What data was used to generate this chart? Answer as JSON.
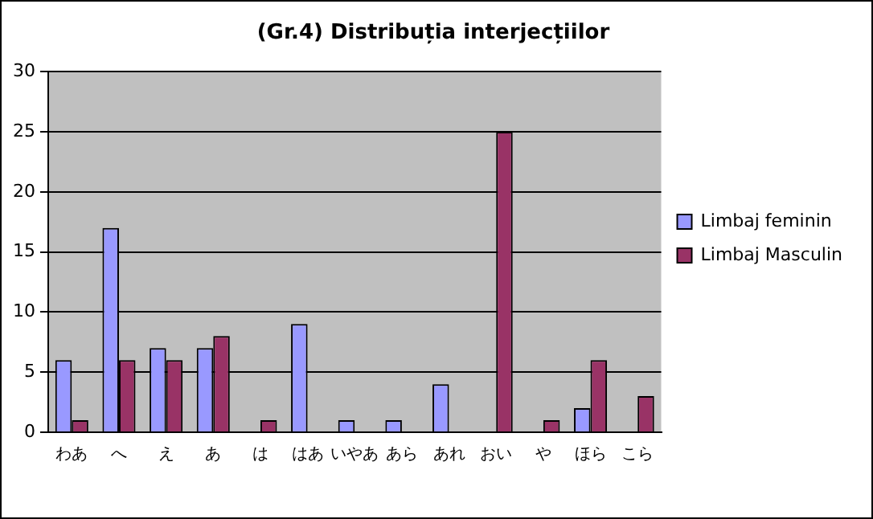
{
  "chart_data": {
    "type": "bar",
    "title": "(Gr.4) Distribuția interjecțiilor",
    "categories": [
      "わあ",
      "へ",
      "え",
      "あ",
      "は",
      "はあ",
      "いやあ",
      "あら",
      "あれ",
      "おい",
      "や",
      "ほら",
      "こら"
    ],
    "series": [
      {
        "name": "Limbaj feminin",
        "color": "#9999ff",
        "values": [
          6,
          17,
          7,
          7,
          0,
          9,
          1,
          1,
          4,
          0,
          0,
          2,
          0
        ]
      },
      {
        "name": "Limbaj Masculin",
        "color": "#993366",
        "values": [
          1,
          6,
          6,
          8,
          1,
          0,
          0,
          0,
          0,
          25,
          1,
          6,
          3
        ]
      }
    ],
    "ylim": [
      0,
      30
    ],
    "yticks": [
      0,
      5,
      10,
      15,
      20,
      25,
      30
    ],
    "grid": "y",
    "legend": "right"
  }
}
